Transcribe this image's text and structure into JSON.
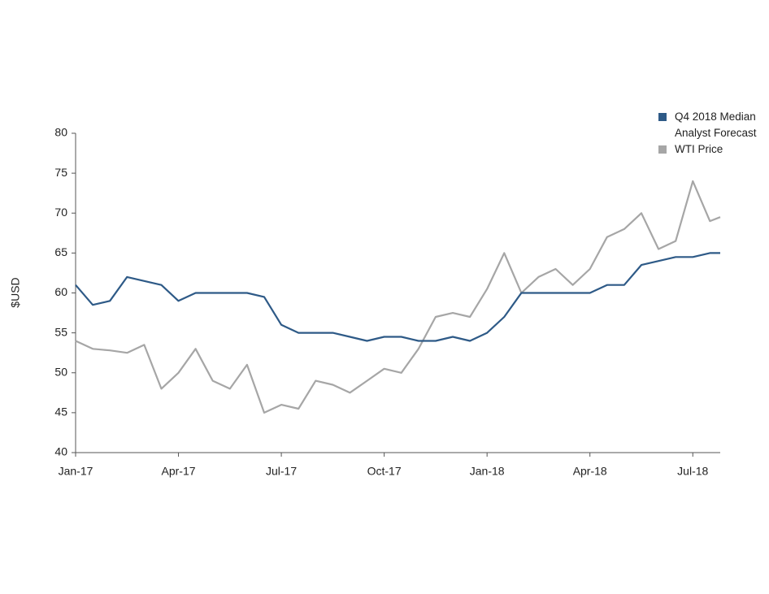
{
  "chart_data": {
    "type": "line",
    "y_label": "$USD",
    "x": [
      0,
      0.5,
      1,
      1.5,
      2,
      2.5,
      3,
      3.5,
      4,
      4.5,
      5,
      5.5,
      6,
      6.5,
      7,
      7.5,
      8,
      8.5,
      9,
      9.5,
      10,
      10.5,
      11,
      11.5,
      12,
      12.5,
      13,
      13.5,
      14,
      14.5,
      15,
      15.5,
      16,
      16.5,
      17,
      17.5,
      18,
      18.5,
      18.8
    ],
    "series": [
      {
        "name": "Q4 2018 Median Analyst Forecast",
        "color": "#2e5a87",
        "values": [
          61,
          58.5,
          59,
          62,
          61.5,
          61,
          59,
          60,
          60,
          60,
          60,
          59.5,
          56,
          55,
          55,
          55,
          54.5,
          54,
          54.5,
          54.5,
          54,
          54,
          54.5,
          54,
          55,
          57,
          60,
          60,
          60,
          60,
          60,
          61,
          61,
          63.5,
          64,
          64.5,
          64.5,
          65,
          65
        ]
      },
      {
        "name": "WTI Price",
        "color": "#a6a6a6",
        "values": [
          54,
          53,
          52.8,
          52.5,
          53.5,
          48,
          50,
          53,
          49,
          48,
          51,
          45,
          46,
          45.5,
          49,
          48.5,
          47.5,
          49,
          50.5,
          50,
          53,
          57,
          57.5,
          57,
          60.5,
          65,
          60,
          62,
          63,
          61,
          63,
          67,
          68,
          70,
          65.5,
          66.5,
          74,
          69,
          69.5
        ]
      }
    ],
    "xlim": [
      0,
      18.8
    ],
    "xticks": [
      {
        "value": 0,
        "label": "Jan-17"
      },
      {
        "value": 3,
        "label": "Apr-17"
      },
      {
        "value": 6,
        "label": "Jul-17"
      },
      {
        "value": 9,
        "label": "Oct-17"
      },
      {
        "value": 12,
        "label": "Jan-18"
      },
      {
        "value": 15,
        "label": "Apr-18"
      },
      {
        "value": 18,
        "label": "Jul-18"
      }
    ],
    "ylim": [
      40,
      80
    ],
    "yticks": [
      40,
      45,
      50,
      55,
      60,
      65,
      70,
      75,
      80
    ],
    "grid": false,
    "legend": "top-right"
  }
}
